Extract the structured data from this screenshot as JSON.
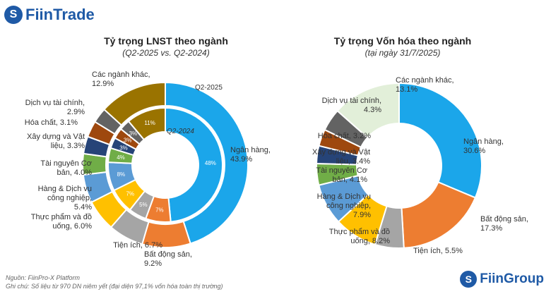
{
  "brand": {
    "left": "FiinTrade",
    "right": "FiinGroup"
  },
  "footer": {
    "source": "Nguồn: FiinPro-X Platform",
    "note": "Ghi chú: Số liệu từ 970 DN niêm yết (đại diện 97,1% vốn hóa toàn thị trường)"
  },
  "colors": [
    "#1ba6ea",
    "#ed7d31",
    "#a5a5a5",
    "#ffc000",
    "#5b9bd5",
    "#70ad47",
    "#264478",
    "#9e480e",
    "#636363",
    "#9a7300"
  ],
  "chart_data": [
    {
      "type": "pie",
      "title": "Tỷ trọng LNST theo ngành",
      "subtitle": "(Q2-2025 vs. Q2-2024)",
      "categories": [
        "Ngân hàng",
        "Bất động sản",
        "Tiện ích",
        "Thực phẩm và đồ uống",
        "Hàng & Dịch vụ công nghiệp",
        "Tài nguyên Cơ bản",
        "Xây dựng và Vật liệu",
        "Hóa chất",
        "Dịch vụ tài chính",
        "Các ngành khác"
      ],
      "series": [
        {
          "name": "Q2-2025",
          "values": [
            43.9,
            9.2,
            6.7,
            6.0,
            5.4,
            4.0,
            3.3,
            3.1,
            2.9,
            12.9
          ]
        },
        {
          "name": "Q2-2024",
          "values": [
            48,
            7,
            5,
            7,
            8,
            4,
            3,
            3,
            3,
            11
          ]
        }
      ],
      "labels": [
        "Ngân hàng, 43.9%",
        "Bất động sản, 9.2%",
        "Tiện ích, 6.7%",
        "Thực phẩm và đồ uống, 6.0%",
        "Hàng & Dịch vụ công nghiệp, 5.4%",
        "Tài nguyên Cơ bản, 4.0%",
        "Xây dựng và Vật liệu, 3.3%",
        "Hóa chất, 3.1%",
        "Dịch vụ tài chính, 2.9%",
        "Các ngành khác, 12.9%"
      ]
    },
    {
      "type": "pie",
      "title": "Tỷ trọng Vốn hóa theo ngành",
      "subtitle": "(tại ngày 31/7/2025)",
      "categories": [
        "Ngân hàng",
        "Bất động sản",
        "Tiện ích",
        "Thực phẩm và đồ uống",
        "Hàng & Dịch vụ công nghiệp",
        "Tài nguyên Cơ bản",
        "Xây dựng và Vật liệu",
        "Hóa chất",
        "Dịch vụ tài chính",
        "Các ngành khác"
      ],
      "values": [
        30.6,
        17.3,
        5.5,
        8.2,
        7.9,
        4.1,
        3.4,
        3.2,
        4.3,
        13.1
      ],
      "other_color": "#e2efd9",
      "labels": [
        "Ngân hàng, 30.6%",
        "Bất động sản, 17.3%",
        "Tiện ích, 5.5%",
        "Thực phẩm và đồ uống, 8.2%",
        "Hàng & Dịch vụ công nghiệp, 7.9%",
        "Tài nguyên Cơ bản, 4.1%",
        "Xây dựng và Vật liệu, 3.4%",
        "Hóa chất, 3.2%",
        "Dịch vụ tài chính, 4.3%",
        "Các ngành khác, 13.1%"
      ]
    }
  ]
}
